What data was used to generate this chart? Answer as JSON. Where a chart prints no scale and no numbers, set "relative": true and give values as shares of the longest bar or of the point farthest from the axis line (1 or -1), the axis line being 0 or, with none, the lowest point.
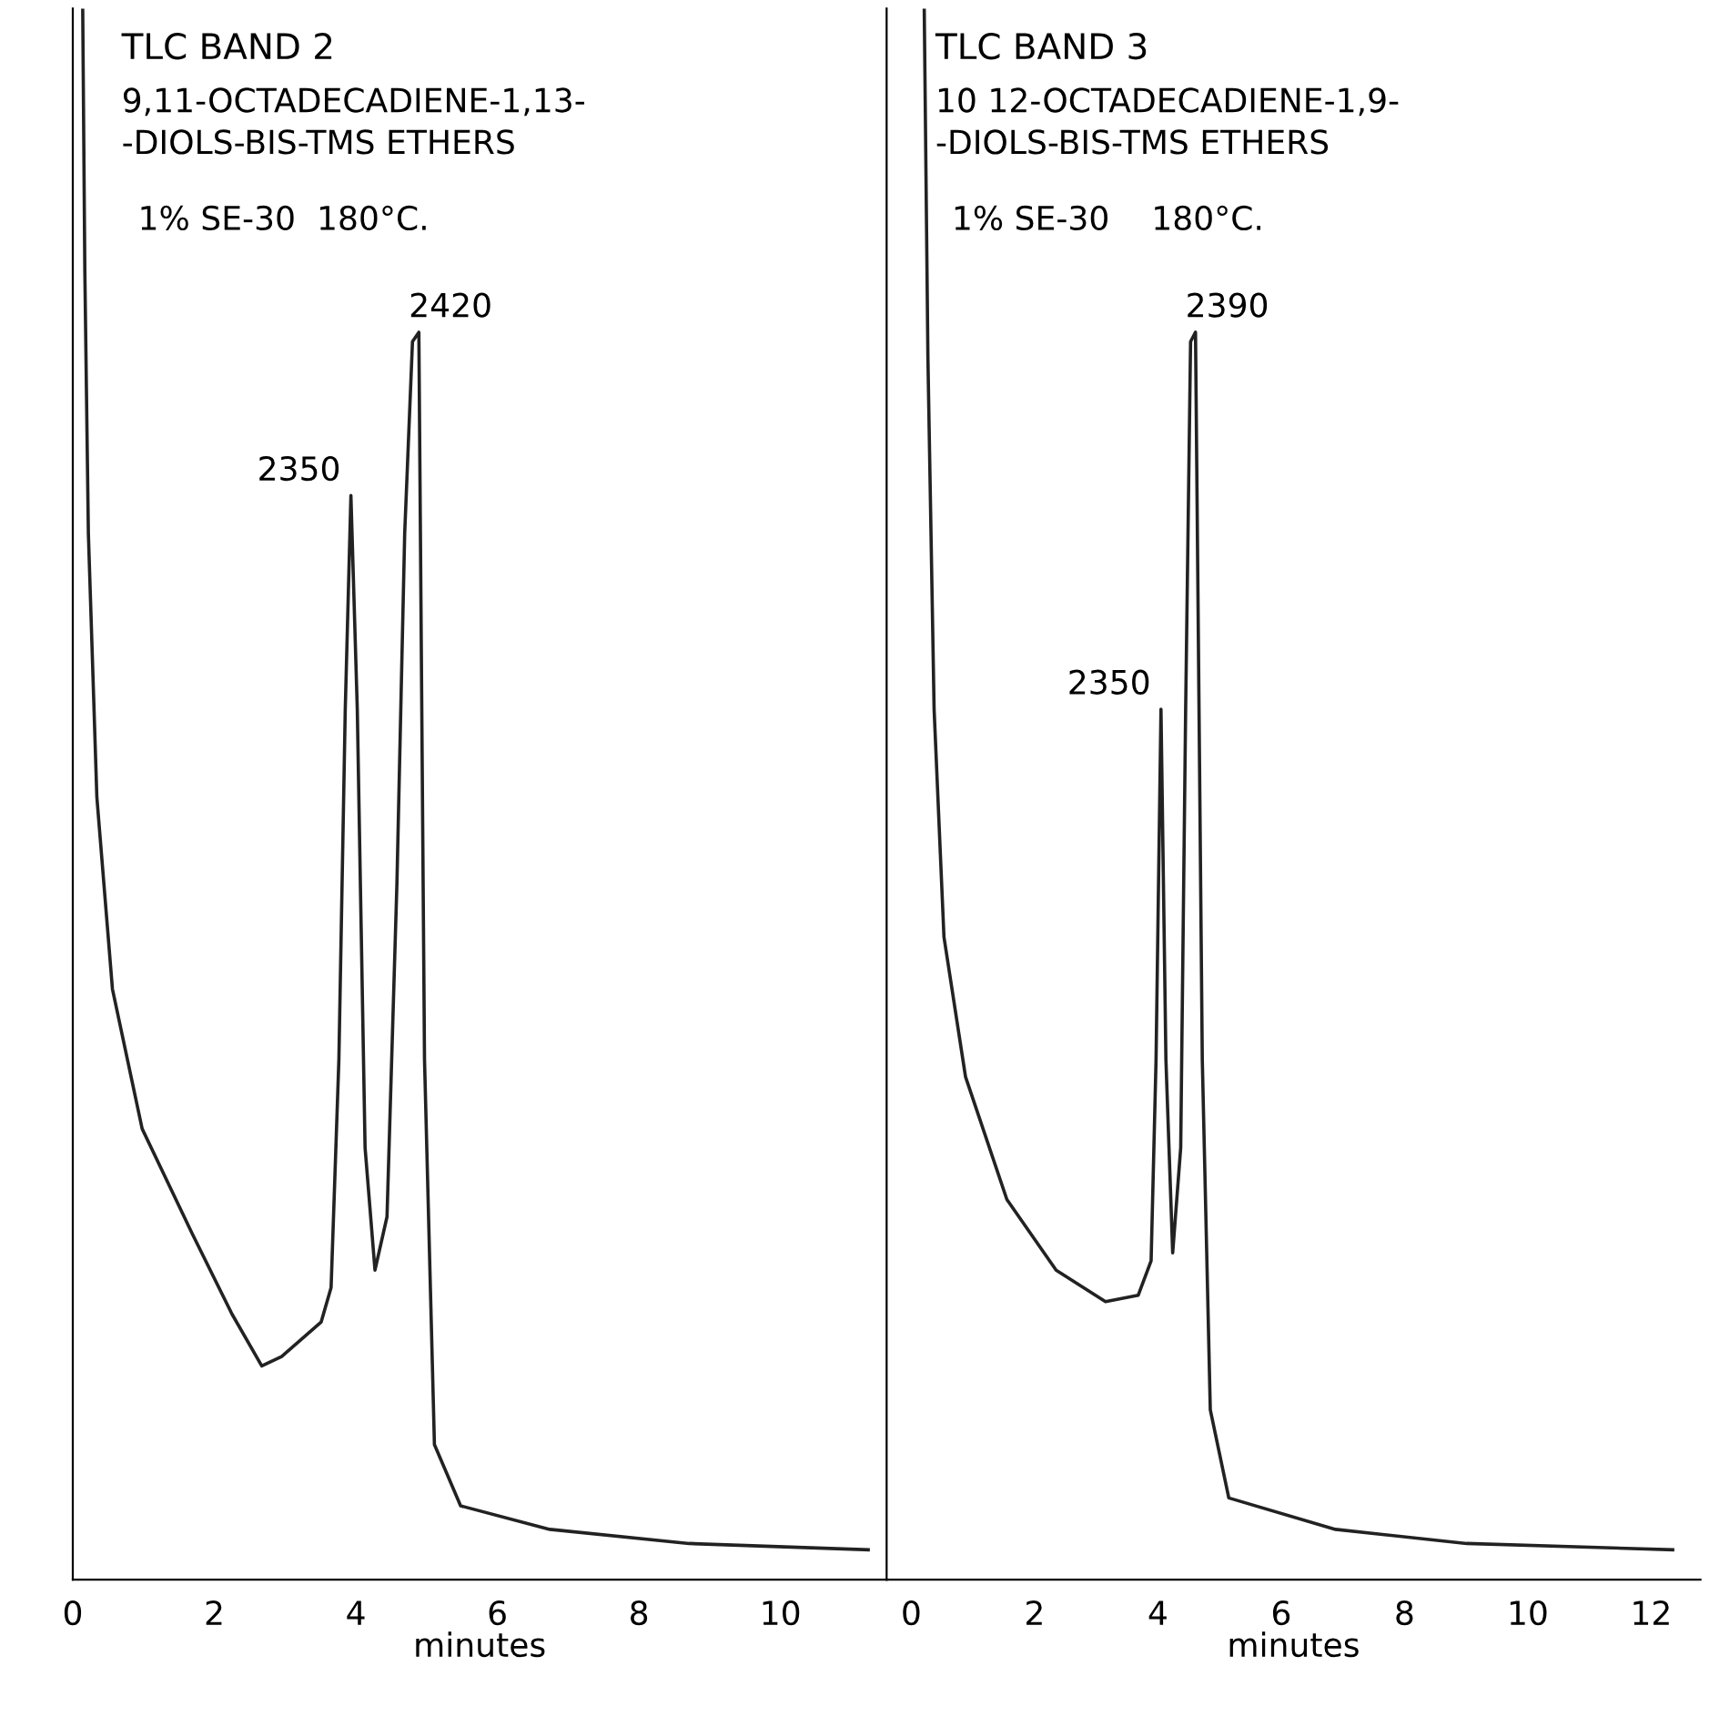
{
  "chart_data": [
    {
      "type": "line",
      "relative": true,
      "title": "TLC BAND 2",
      "subtitle": "9,11-OCTADECADIENE-1,13-\n-DIOLS-BIS-TMS ETHERS",
      "annotations": [
        "1% SE-30  180°C.",
        {
          "text": "2350",
          "x": 3.93,
          "y": 0.69
        },
        {
          "text": "2420",
          "x": 4.89,
          "y": 0.794
        }
      ],
      "xlabel": "minutes",
      "xlim": [
        0,
        11.5
      ],
      "xticks": [
        0,
        2,
        4,
        6,
        8,
        10
      ],
      "grid": false,
      "legend": false,
      "series": [
        {
          "color": "#222222",
          "x": [
            0.14,
            0.17,
            0.22,
            0.34,
            0.56,
            0.98,
            1.69,
            2.25,
            2.67,
            2.95,
            3.23,
            3.51,
            3.65,
            3.76,
            3.85,
            3.93,
            4.02,
            4.13,
            4.27,
            4.44,
            4.58,
            4.69,
            4.8,
            4.89,
            4.97,
            5.11,
            5.48,
            6.74,
            8.71,
            11.24
          ],
          "values": [
            1.0,
            0.833,
            0.666,
            0.498,
            0.376,
            0.287,
            0.22,
            0.169,
            0.136,
            0.142,
            0.153,
            0.164,
            0.186,
            0.331,
            0.554,
            0.69,
            0.554,
            0.275,
            0.197,
            0.231,
            0.443,
            0.666,
            0.788,
            0.794,
            0.331,
            0.086,
            0.047,
            0.032,
            0.023,
            0.019
          ]
        }
      ]
    },
    {
      "type": "line",
      "relative": true,
      "title": "TLC BAND 3",
      "subtitle": "10 12-OCTADECADIENE-1,9-\n-DIOLS-BIS-TMS ETHERS",
      "annotations": [
        "1% SE-30    180°C.",
        {
          "text": "2350",
          "x": 4.05,
          "y": 0.554
        },
        {
          "text": "2390",
          "x": 4.61,
          "y": 0.794
        }
      ],
      "xlabel": "minutes",
      "xlim": [
        -0.4,
        12.8
      ],
      "xticks": [
        0,
        2,
        4,
        6,
        8,
        10,
        12
      ],
      "grid": false,
      "legend": false,
      "series": [
        {
          "color": "#222222",
          "x": [
            0.21,
            0.27,
            0.37,
            0.53,
            0.88,
            1.55,
            2.35,
            3.15,
            3.68,
            3.89,
            3.97,
            4.05,
            4.13,
            4.24,
            4.37,
            4.45,
            4.53,
            4.61,
            4.72,
            4.85,
            5.15,
            6.88,
            9.01,
            12.35
          ],
          "values": [
            1.0,
            0.777,
            0.554,
            0.409,
            0.32,
            0.242,
            0.197,
            0.177,
            0.181,
            0.203,
            0.331,
            0.554,
            0.331,
            0.208,
            0.275,
            0.554,
            0.788,
            0.794,
            0.331,
            0.108,
            0.052,
            0.032,
            0.023,
            0.019
          ]
        }
      ]
    }
  ]
}
